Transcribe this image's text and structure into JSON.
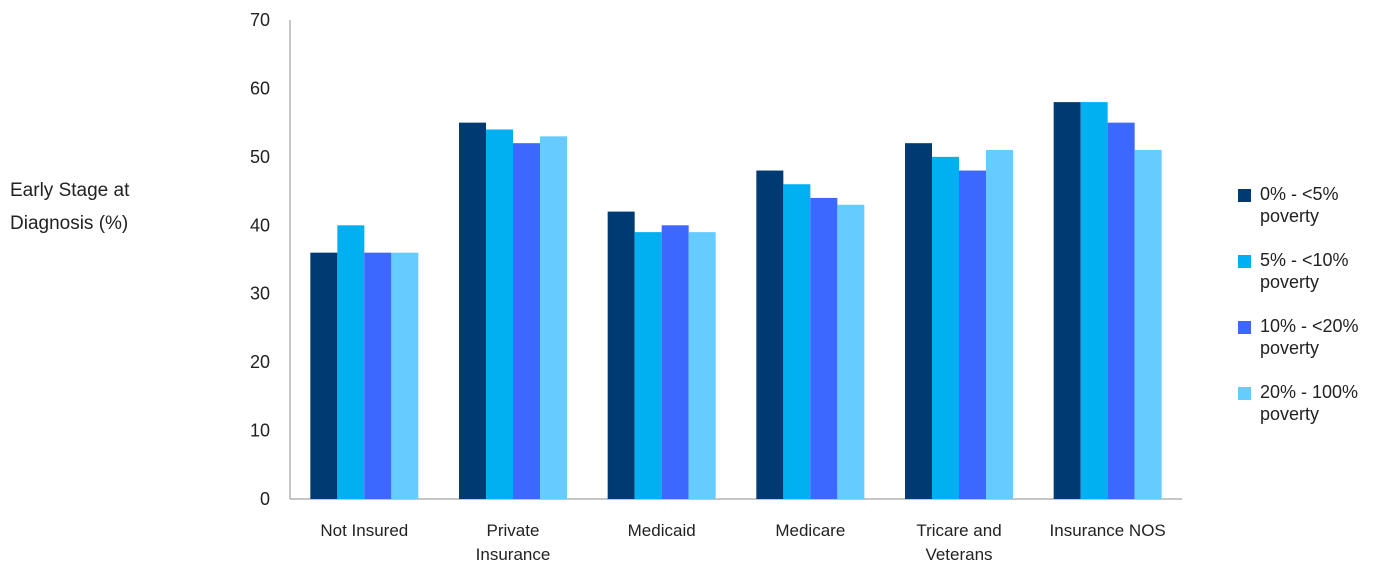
{
  "chart_data": {
    "type": "bar",
    "title": "",
    "xlabel": "",
    "ylabel": "Early Stage at Diagnosis (%)",
    "ylabel_lines": [
      "Early Stage at",
      "Diagnosis (%)"
    ],
    "ylim": [
      0,
      70
    ],
    "yticks": [
      "0",
      "10",
      "20",
      "30",
      "40",
      "50",
      "60",
      "70"
    ],
    "grid": false,
    "legend_position": "right",
    "categories": [
      "Not Insured",
      "Private Insurance",
      "Medicaid",
      "Medicare",
      "Tricare and Veterans",
      "Insurance NOS"
    ],
    "category_lines": [
      [
        "Not Insured"
      ],
      [
        "Private",
        "Insurance"
      ],
      [
        "Medicaid"
      ],
      [
        "Medicare"
      ],
      [
        "Tricare and",
        "Veterans"
      ],
      [
        "Insurance NOS"
      ]
    ],
    "series": [
      {
        "name": "0% - <5% poverty",
        "color": "#003a73",
        "values": [
          36,
          55,
          42,
          48,
          52,
          58
        ]
      },
      {
        "name": "5% - <10% poverty",
        "color": "#00b0f0",
        "values": [
          40,
          54,
          39,
          46,
          50,
          58
        ]
      },
      {
        "name": "10% - <20% poverty",
        "color": "#3d68ff",
        "values": [
          36,
          52,
          40,
          44,
          48,
          55
        ]
      },
      {
        "name": "20% - 100% poverty",
        "color": "#66ccff",
        "values": [
          36,
          53,
          39,
          43,
          51,
          51
        ]
      }
    ]
  }
}
